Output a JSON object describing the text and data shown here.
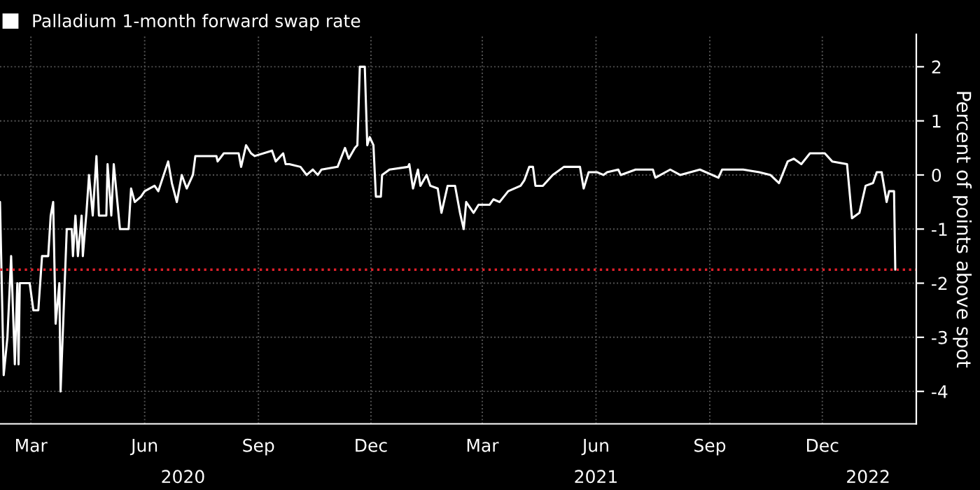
{
  "chart_data": {
    "type": "line",
    "ylabel": "Percent of points above spot",
    "series": [
      {
        "name": "Palladium 1-month forward swap rate",
        "color": "#ffffff",
        "x": [
          "2020-02-05",
          "2020-02-08",
          "2020-02-11",
          "2020-02-14",
          "2020-02-17",
          "2020-02-19",
          "2020-02-20",
          "2020-02-21",
          "2020-02-29",
          "2020-03-03",
          "2020-03-07",
          "2020-03-10",
          "2020-03-15",
          "2020-03-17",
          "2020-03-19",
          "2020-03-21",
          "2020-03-24",
          "2020-03-25",
          "2020-03-30",
          "2020-04-03",
          "2020-04-04",
          "2020-04-06",
          "2020-04-08",
          "2020-04-11",
          "2020-04-12",
          "2020-04-15",
          "2020-04-17",
          "2020-04-20",
          "2020-04-23",
          "2020-04-25",
          "2020-05-01",
          "2020-05-02",
          "2020-05-05",
          "2020-05-07",
          "2020-05-12",
          "2020-05-19",
          "2020-05-21",
          "2020-05-24",
          "2020-05-29",
          "2020-06-01",
          "2020-06-09",
          "2020-06-12",
          "2020-06-20",
          "2020-06-23",
          "2020-06-27",
          "2020-07-01",
          "2020-07-05",
          "2020-07-10",
          "2020-07-12",
          "2020-07-29",
          "2020-07-30",
          "2020-08-04",
          "2020-08-16",
          "2020-08-18",
          "2020-08-22",
          "2020-08-26",
          "2020-08-29",
          "2020-09-12",
          "2020-09-15",
          "2020-09-21",
          "2020-09-23",
          "2020-09-26",
          "2020-10-05",
          "2020-10-10",
          "2020-10-15",
          "2020-10-19",
          "2020-10-22",
          "2020-11-04",
          "2020-11-10",
          "2020-11-13",
          "2020-11-18",
          "2020-11-20",
          "2020-11-22",
          "2020-11-26",
          "2020-11-28",
          "2020-11-30",
          "2020-12-03",
          "2020-12-05",
          "2020-12-09",
          "2020-12-10",
          "2020-12-16",
          "2020-12-31",
          "2021-01-01",
          "2021-01-04",
          "2021-01-08",
          "2021-01-10",
          "2021-01-15",
          "2021-01-18",
          "2021-01-24",
          "2021-01-27",
          "2021-02-01",
          "2021-02-07",
          "2021-02-11",
          "2021-02-14",
          "2021-02-16",
          "2021-02-22",
          "2021-02-26",
          "2021-03-07",
          "2021-03-10",
          "2021-03-15",
          "2021-03-22",
          "2021-04-01",
          "2021-04-04",
          "2021-04-08",
          "2021-04-11",
          "2021-04-13",
          "2021-04-19",
          "2021-04-27",
          "2021-05-06",
          "2021-05-19",
          "2021-05-22",
          "2021-05-26",
          "2021-06-02",
          "2021-06-07",
          "2021-06-10",
          "2021-06-19",
          "2021-06-21",
          "2021-07-03",
          "2021-07-17",
          "2021-07-19",
          "2021-07-31",
          "2021-08-08",
          "2021-08-24",
          "2021-09-08",
          "2021-09-11",
          "2021-09-28",
          "2021-10-11",
          "2021-10-20",
          "2021-10-27",
          "2021-11-03",
          "2021-11-08",
          "2021-11-14",
          "2021-11-21",
          "2021-12-03",
          "2021-12-09",
          "2021-12-21",
          "2021-12-25",
          "2021-12-31",
          "2022-01-05",
          "2022-01-11",
          "2022-01-14",
          "2022-01-18",
          "2022-01-22",
          "2022-01-24",
          "2022-01-28",
          "2022-01-29"
        ],
        "values": [
          -0.5,
          -3.7,
          -3.0,
          -1.5,
          -3.5,
          -2.0,
          -3.5,
          -2.0,
          -2.0,
          -2.5,
          -2.5,
          -1.5,
          -1.5,
          -0.75,
          -0.5,
          -2.75,
          -2.0,
          -4.0,
          -1.0,
          -1.0,
          -1.5,
          -0.75,
          -1.5,
          -0.75,
          -1.5,
          -0.67,
          0.0,
          -0.75,
          0.35,
          -0.75,
          -0.75,
          0.2,
          -0.75,
          0.2,
          -1.0,
          -1.0,
          -0.25,
          -0.5,
          -0.4,
          -0.3,
          -0.2,
          -0.3,
          0.25,
          -0.15,
          -0.5,
          0.0,
          -0.25,
          0.0,
          0.35,
          0.35,
          0.25,
          0.4,
          0.4,
          0.15,
          0.55,
          0.4,
          0.35,
          0.45,
          0.25,
          0.4,
          0.2,
          0.2,
          0.15,
          0.0,
          0.1,
          0.0,
          0.1,
          0.15,
          0.5,
          0.3,
          0.5,
          0.55,
          2.0,
          2.0,
          0.55,
          0.7,
          0.55,
          -0.4,
          -0.4,
          0.0,
          0.1,
          0.15,
          0.2,
          -0.25,
          0.1,
          -0.2,
          0.0,
          -0.2,
          -0.25,
          -0.7,
          -0.2,
          -0.2,
          -0.7,
          -1.0,
          -0.5,
          -0.7,
          -0.55,
          -0.55,
          -0.45,
          -0.5,
          -0.3,
          -0.2,
          -0.1,
          0.15,
          0.15,
          -0.2,
          -0.2,
          0.0,
          0.15,
          0.15,
          -0.25,
          0.05,
          0.05,
          0.0,
          0.05,
          0.1,
          0.0,
          0.1,
          0.1,
          -0.05,
          0.1,
          0.0,
          0.1,
          -0.05,
          0.1,
          0.1,
          0.05,
          0.0,
          -0.15,
          0.25,
          0.3,
          0.2,
          0.4,
          0.4,
          0.25,
          0.2,
          -0.8,
          -0.7,
          -0.2,
          -0.15,
          0.05,
          0.05,
          -0.5,
          -0.3,
          -0.3,
          -1.75
        ]
      }
    ],
    "xlim": [
      "2020-02-05",
      "2022-02-15"
    ],
    "xticks": [
      {
        "value": "2020-03-01",
        "label": "Mar"
      },
      {
        "value": "2020-06-01",
        "label": "Jun"
      },
      {
        "value": "2020-09-01",
        "label": "Sep"
      },
      {
        "value": "2020-12-01",
        "label": "Dec"
      },
      {
        "value": "2021-03-01",
        "label": "Mar"
      },
      {
        "value": "2021-06-01",
        "label": "Jun"
      },
      {
        "value": "2021-09-01",
        "label": "Sep"
      },
      {
        "value": "2021-12-01",
        "label": "Dec"
      }
    ],
    "ylim": [
      -4.6,
      2.6
    ],
    "yticks": [
      -4,
      -3,
      -2,
      -1,
      0,
      1,
      2
    ],
    "ref_lines": [
      {
        "axis": "y",
        "value": -1.75,
        "color": "#e0202a",
        "line_style": "dotted"
      }
    ],
    "x2lim": [
      "2020-02-05",
      "2022-02-15"
    ],
    "x2ticks": [
      {
        "value": "2020-07-02",
        "label": "2020"
      },
      {
        "value": "2021-06-01",
        "label": "2021"
      },
      {
        "value": "2022-01-07",
        "label": "2022"
      }
    ],
    "grid": true,
    "legend": "top left",
    "line_style": "solid",
    "marker": "none"
  }
}
